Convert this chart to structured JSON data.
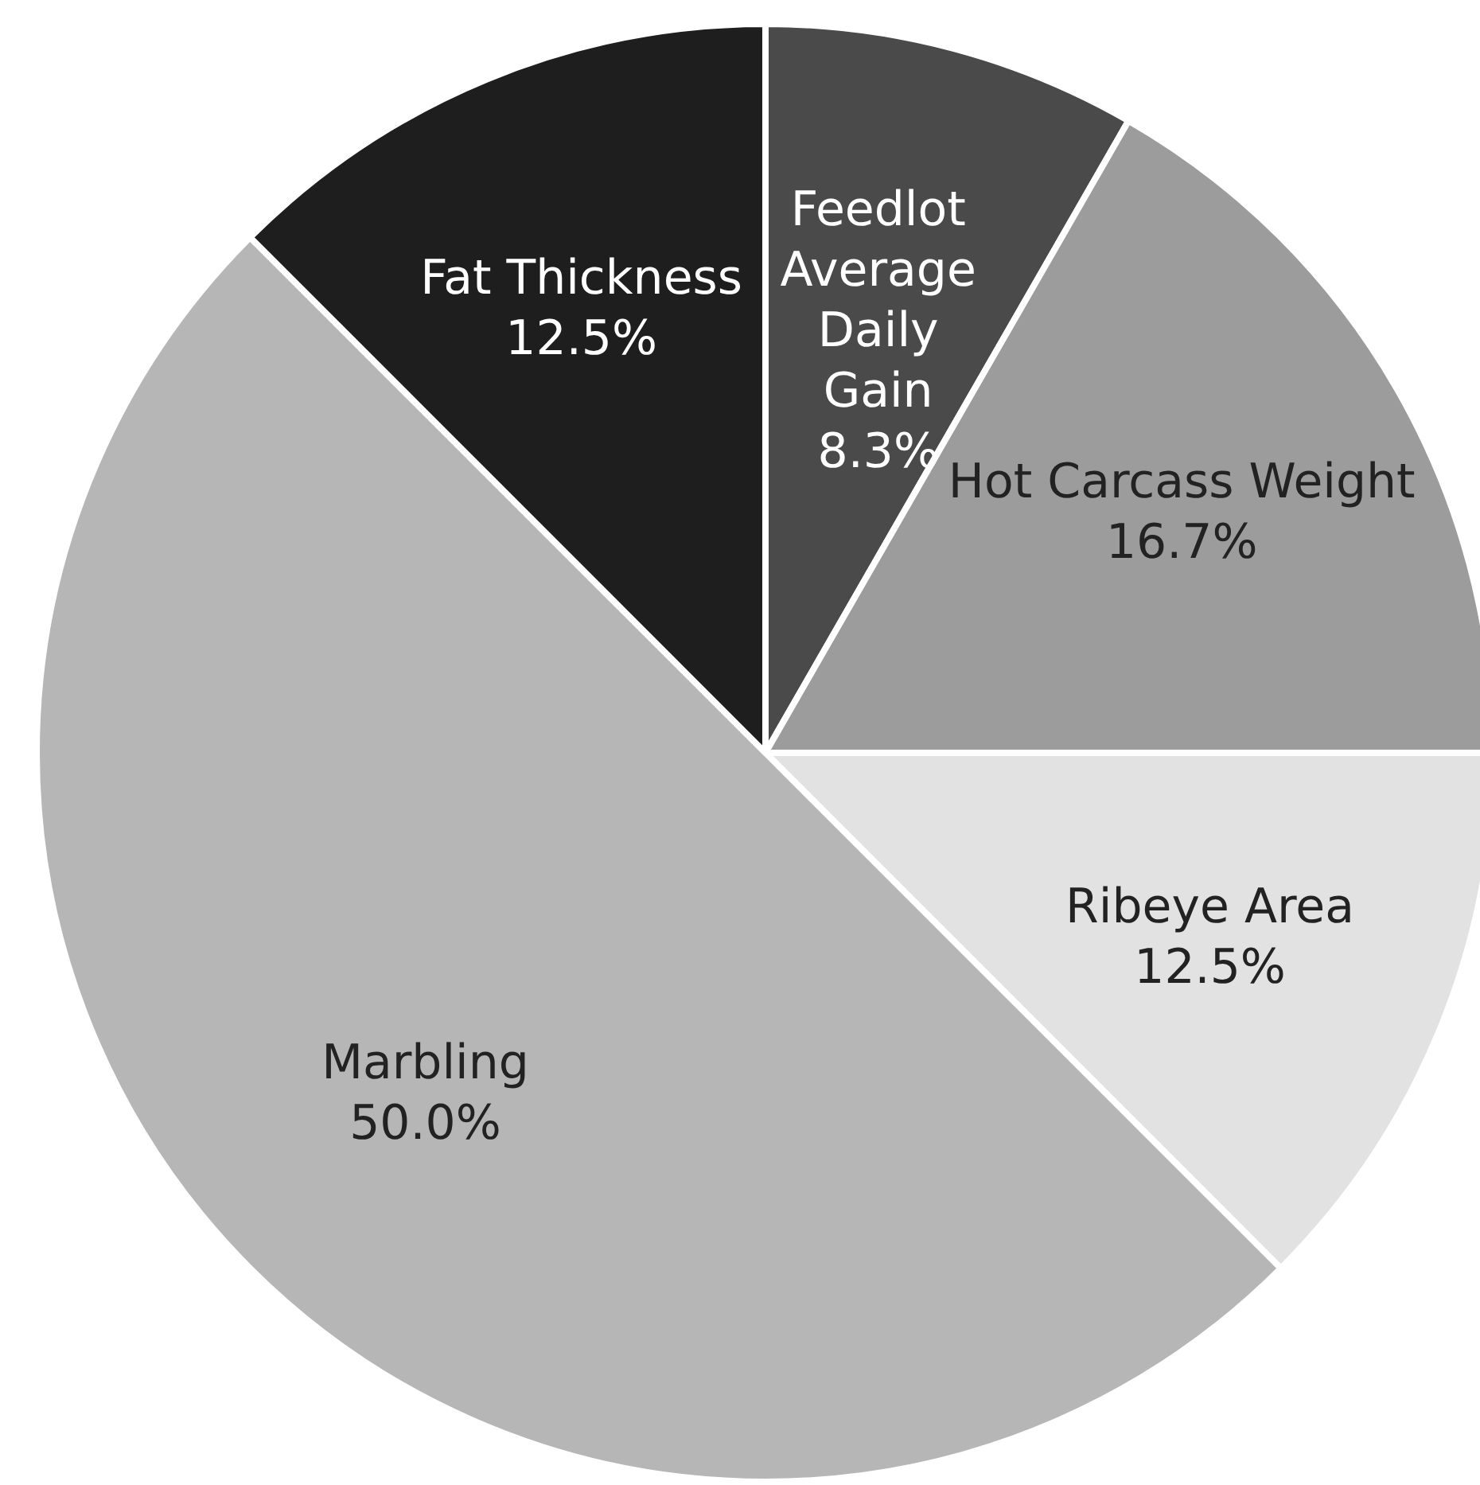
{
  "chart_data": {
    "type": "pie",
    "categories": [
      "Feedlot Average Daily Gain",
      "Hot Carcass Weight",
      "Ribeye Area",
      "Marbling",
      "Fat Thickness"
    ],
    "values": [
      8.3,
      16.7,
      12.5,
      50.0,
      12.5
    ],
    "value_labels": [
      "8.3%",
      "16.7%",
      "12.5%",
      "50.0%",
      "12.5%"
    ],
    "colors": [
      "#4a4a4a",
      "#9c9c9c",
      "#e2e2e2",
      "#b6b6b6",
      "#1e1e1e"
    ]
  }
}
